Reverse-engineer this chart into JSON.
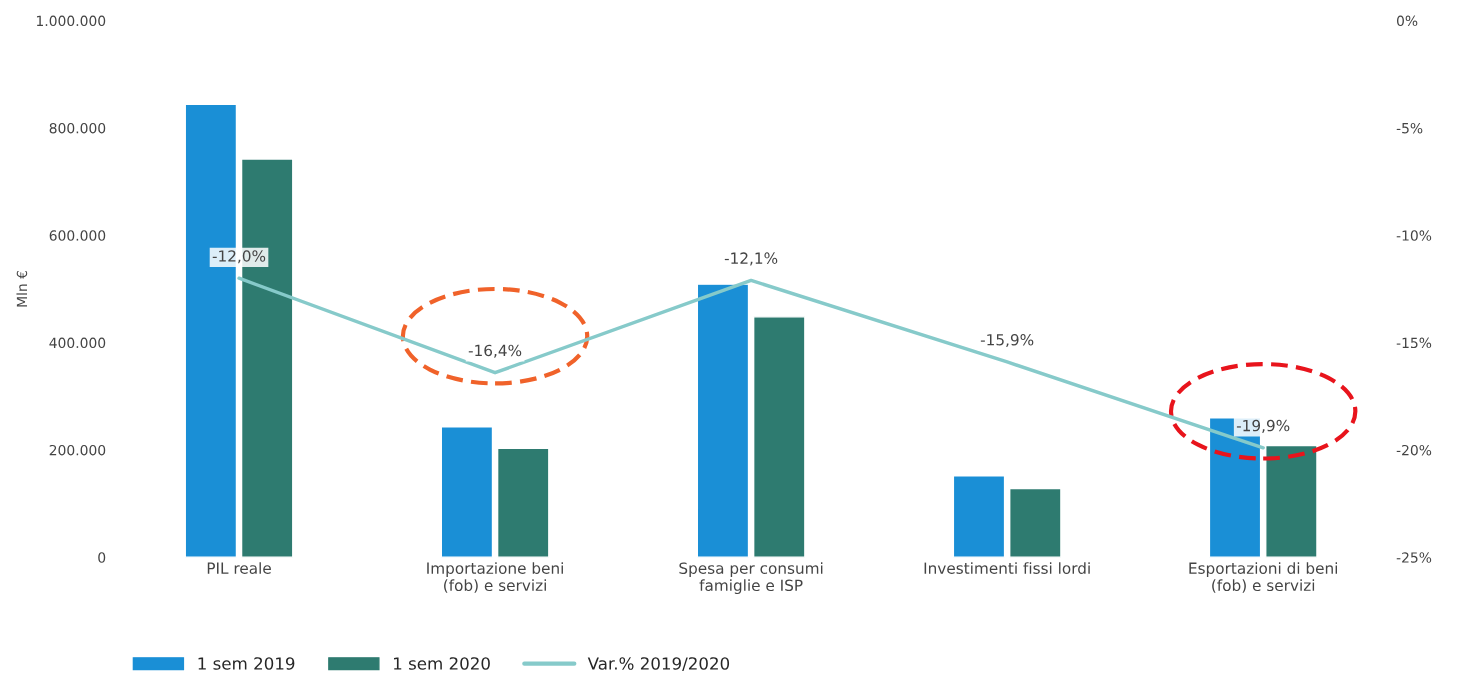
{
  "chart_data": {
    "type": "bar",
    "ylabel": "Mln €",
    "categories": [
      "PIL reale",
      "Importazione beni\n(fob) e servizi",
      "Spesa per consumi\nfamiglie e ISP",
      "Investimenti fissi lordi",
      "Esportazioni di beni\n(fob) e servizi"
    ],
    "series": [
      {
        "name": "1 sem 2019",
        "color": "#1a8fd6",
        "values": [
          844000,
          243000,
          509000,
          152000,
          260000
        ]
      },
      {
        "name": "1 sem 2020",
        "color": "#2e7b70",
        "values": [
          742000,
          203000,
          448000,
          128000,
          208000
        ]
      },
      {
        "name": "Var.% 2019/2020",
        "type": "line",
        "axis": "y2",
        "color": "#86caca",
        "values": [
          -12.0,
          -16.4,
          -12.1,
          -15.9,
          -19.9
        ],
        "value_labels": [
          "-12,0%",
          "-16,4%",
          "-12,1%",
          "-15,9%",
          "-19,9%"
        ]
      }
    ],
    "ylim": [
      0,
      1000000
    ],
    "yticks": [
      {
        "value": 0,
        "label": "0"
      },
      {
        "value": 200000,
        "label": "200.000"
      },
      {
        "value": 400000,
        "label": "400.000"
      },
      {
        "value": 600000,
        "label": "600.000"
      },
      {
        "value": 800000,
        "label": "800.000"
      },
      {
        "value": 1000000,
        "label": "1.000.000"
      }
    ],
    "y2lim": [
      -25,
      0
    ],
    "y2ticks": [
      {
        "value": 0,
        "label": "0%"
      },
      {
        "value": -5,
        "label": "-5%"
      },
      {
        "value": -10,
        "label": "-10%"
      },
      {
        "value": -15,
        "label": "-15%"
      },
      {
        "value": -20,
        "label": "-20%"
      },
      {
        "value": -25,
        "label": "-25%"
      }
    ],
    "legend": "bottom left"
  }
}
